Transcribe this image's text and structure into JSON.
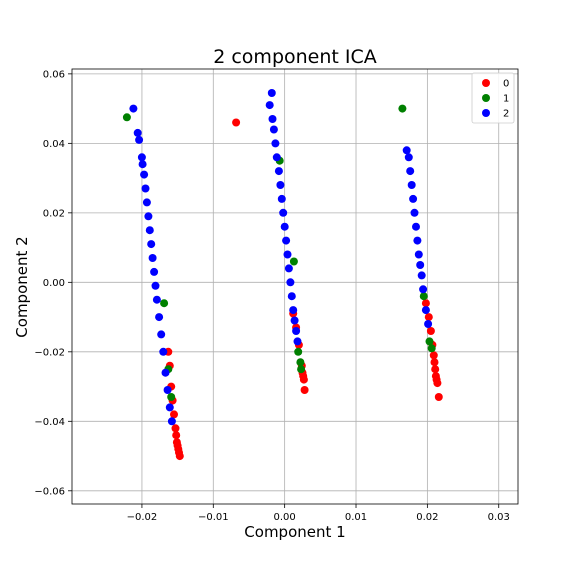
{
  "chart_data": {
    "type": "scatter",
    "title": "2 component ICA",
    "xlabel": "Component 1",
    "ylabel": "Component 2",
    "xlim": [
      -0.0298,
      0.0327
    ],
    "ylim": [
      -0.0638,
      0.0614
    ],
    "xticks": [
      -0.02,
      -0.01,
      0.0,
      0.01,
      0.02,
      0.03
    ],
    "xtick_labels": [
      "−0.02",
      "−0.01",
      "0.00",
      "0.01",
      "0.02",
      "0.03"
    ],
    "yticks": [
      -0.06,
      -0.04,
      -0.02,
      0.0,
      0.02,
      0.04,
      0.06
    ],
    "ytick_labels": [
      "−0.06",
      "−0.04",
      "−0.02",
      "0.00",
      "0.02",
      "0.04",
      "0.06"
    ],
    "grid": true,
    "legend_position": "top-right",
    "series": [
      {
        "name": "0",
        "color": "#ff0000",
        "points": [
          [
            -0.0068,
            0.046
          ],
          [
            -0.0163,
            -0.02
          ],
          [
            -0.0161,
            -0.024
          ],
          [
            -0.0159,
            -0.03
          ],
          [
            -0.0157,
            -0.034
          ],
          [
            -0.0155,
            -0.038
          ],
          [
            -0.0153,
            -0.042
          ],
          [
            -0.0152,
            -0.044
          ],
          [
            -0.0151,
            -0.046
          ],
          [
            -0.015,
            -0.047
          ],
          [
            -0.0149,
            -0.048
          ],
          [
            -0.0148,
            -0.049
          ],
          [
            -0.0147,
            -0.05
          ],
          [
            0.0012,
            -0.009
          ],
          [
            0.0016,
            -0.013
          ],
          [
            0.002,
            -0.018
          ],
          [
            0.0024,
            -0.024
          ],
          [
            0.0025,
            -0.026
          ],
          [
            0.0026,
            -0.027
          ],
          [
            0.0027,
            -0.028
          ],
          [
            0.0028,
            -0.031
          ],
          [
            0.0198,
            -0.006
          ],
          [
            0.0202,
            -0.01
          ],
          [
            0.0205,
            -0.014
          ],
          [
            0.0207,
            -0.018
          ],
          [
            0.0209,
            -0.021
          ],
          [
            0.021,
            -0.023
          ],
          [
            0.0211,
            -0.025
          ],
          [
            0.0212,
            -0.027
          ],
          [
            0.0213,
            -0.028
          ],
          [
            0.0214,
            -0.029
          ],
          [
            0.0216,
            -0.033
          ]
        ]
      },
      {
        "name": "1",
        "color": "#008000",
        "points": [
          [
            -0.0221,
            0.0475
          ],
          [
            -0.0169,
            -0.006
          ],
          [
            -0.0163,
            -0.025
          ],
          [
            -0.0159,
            -0.033
          ],
          [
            -0.0007,
            0.035
          ],
          [
            0.0013,
            0.006
          ],
          [
            0.0019,
            -0.02
          ],
          [
            0.0022,
            -0.023
          ],
          [
            0.0023,
            -0.025
          ],
          [
            0.0165,
            0.05
          ],
          [
            0.0195,
            -0.004
          ],
          [
            0.0203,
            -0.017
          ],
          [
            0.0206,
            -0.019
          ]
        ]
      },
      {
        "name": "2",
        "color": "#0000ff",
        "points": [
          [
            -0.0212,
            0.05
          ],
          [
            -0.0206,
            0.043
          ],
          [
            -0.0204,
            0.041
          ],
          [
            -0.02,
            0.036
          ],
          [
            -0.0199,
            0.034
          ],
          [
            -0.0197,
            0.031
          ],
          [
            -0.0195,
            0.027
          ],
          [
            -0.0193,
            0.023
          ],
          [
            -0.0191,
            0.019
          ],
          [
            -0.0189,
            0.015
          ],
          [
            -0.0187,
            0.011
          ],
          [
            -0.0185,
            0.007
          ],
          [
            -0.0183,
            0.003
          ],
          [
            -0.0181,
            -0.001
          ],
          [
            -0.0179,
            -0.005
          ],
          [
            -0.0176,
            -0.01
          ],
          [
            -0.0173,
            -0.015
          ],
          [
            -0.017,
            -0.02
          ],
          [
            -0.0167,
            -0.026
          ],
          [
            -0.0164,
            -0.031
          ],
          [
            -0.0161,
            -0.036
          ],
          [
            -0.0158,
            -0.04
          ],
          [
            -0.0021,
            0.051
          ],
          [
            -0.0018,
            0.0545
          ],
          [
            -0.0017,
            0.047
          ],
          [
            -0.0015,
            0.044
          ],
          [
            -0.0013,
            0.04
          ],
          [
            -0.0011,
            0.036
          ],
          [
            -0.0008,
            0.032
          ],
          [
            -0.0006,
            0.028
          ],
          [
            -0.0004,
            0.024
          ],
          [
            -0.0002,
            0.02
          ],
          [
            0.0,
            0.016
          ],
          [
            0.0002,
            0.012
          ],
          [
            0.0004,
            0.008
          ],
          [
            0.0006,
            0.004
          ],
          [
            0.0008,
            0.0
          ],
          [
            0.001,
            -0.004
          ],
          [
            0.0012,
            -0.008
          ],
          [
            0.0014,
            -0.011
          ],
          [
            0.0016,
            -0.014
          ],
          [
            0.0018,
            -0.017
          ],
          [
            0.0171,
            0.038
          ],
          [
            0.0174,
            0.036
          ],
          [
            0.0176,
            0.032
          ],
          [
            0.0178,
            0.028
          ],
          [
            0.018,
            0.024
          ],
          [
            0.0182,
            0.02
          ],
          [
            0.0184,
            0.016
          ],
          [
            0.0186,
            0.012
          ],
          [
            0.0188,
            0.008
          ],
          [
            0.019,
            0.005
          ],
          [
            0.0192,
            0.002
          ],
          [
            0.0194,
            -0.002
          ],
          [
            0.0198,
            -0.008
          ],
          [
            0.0201,
            -0.012
          ]
        ]
      }
    ]
  }
}
